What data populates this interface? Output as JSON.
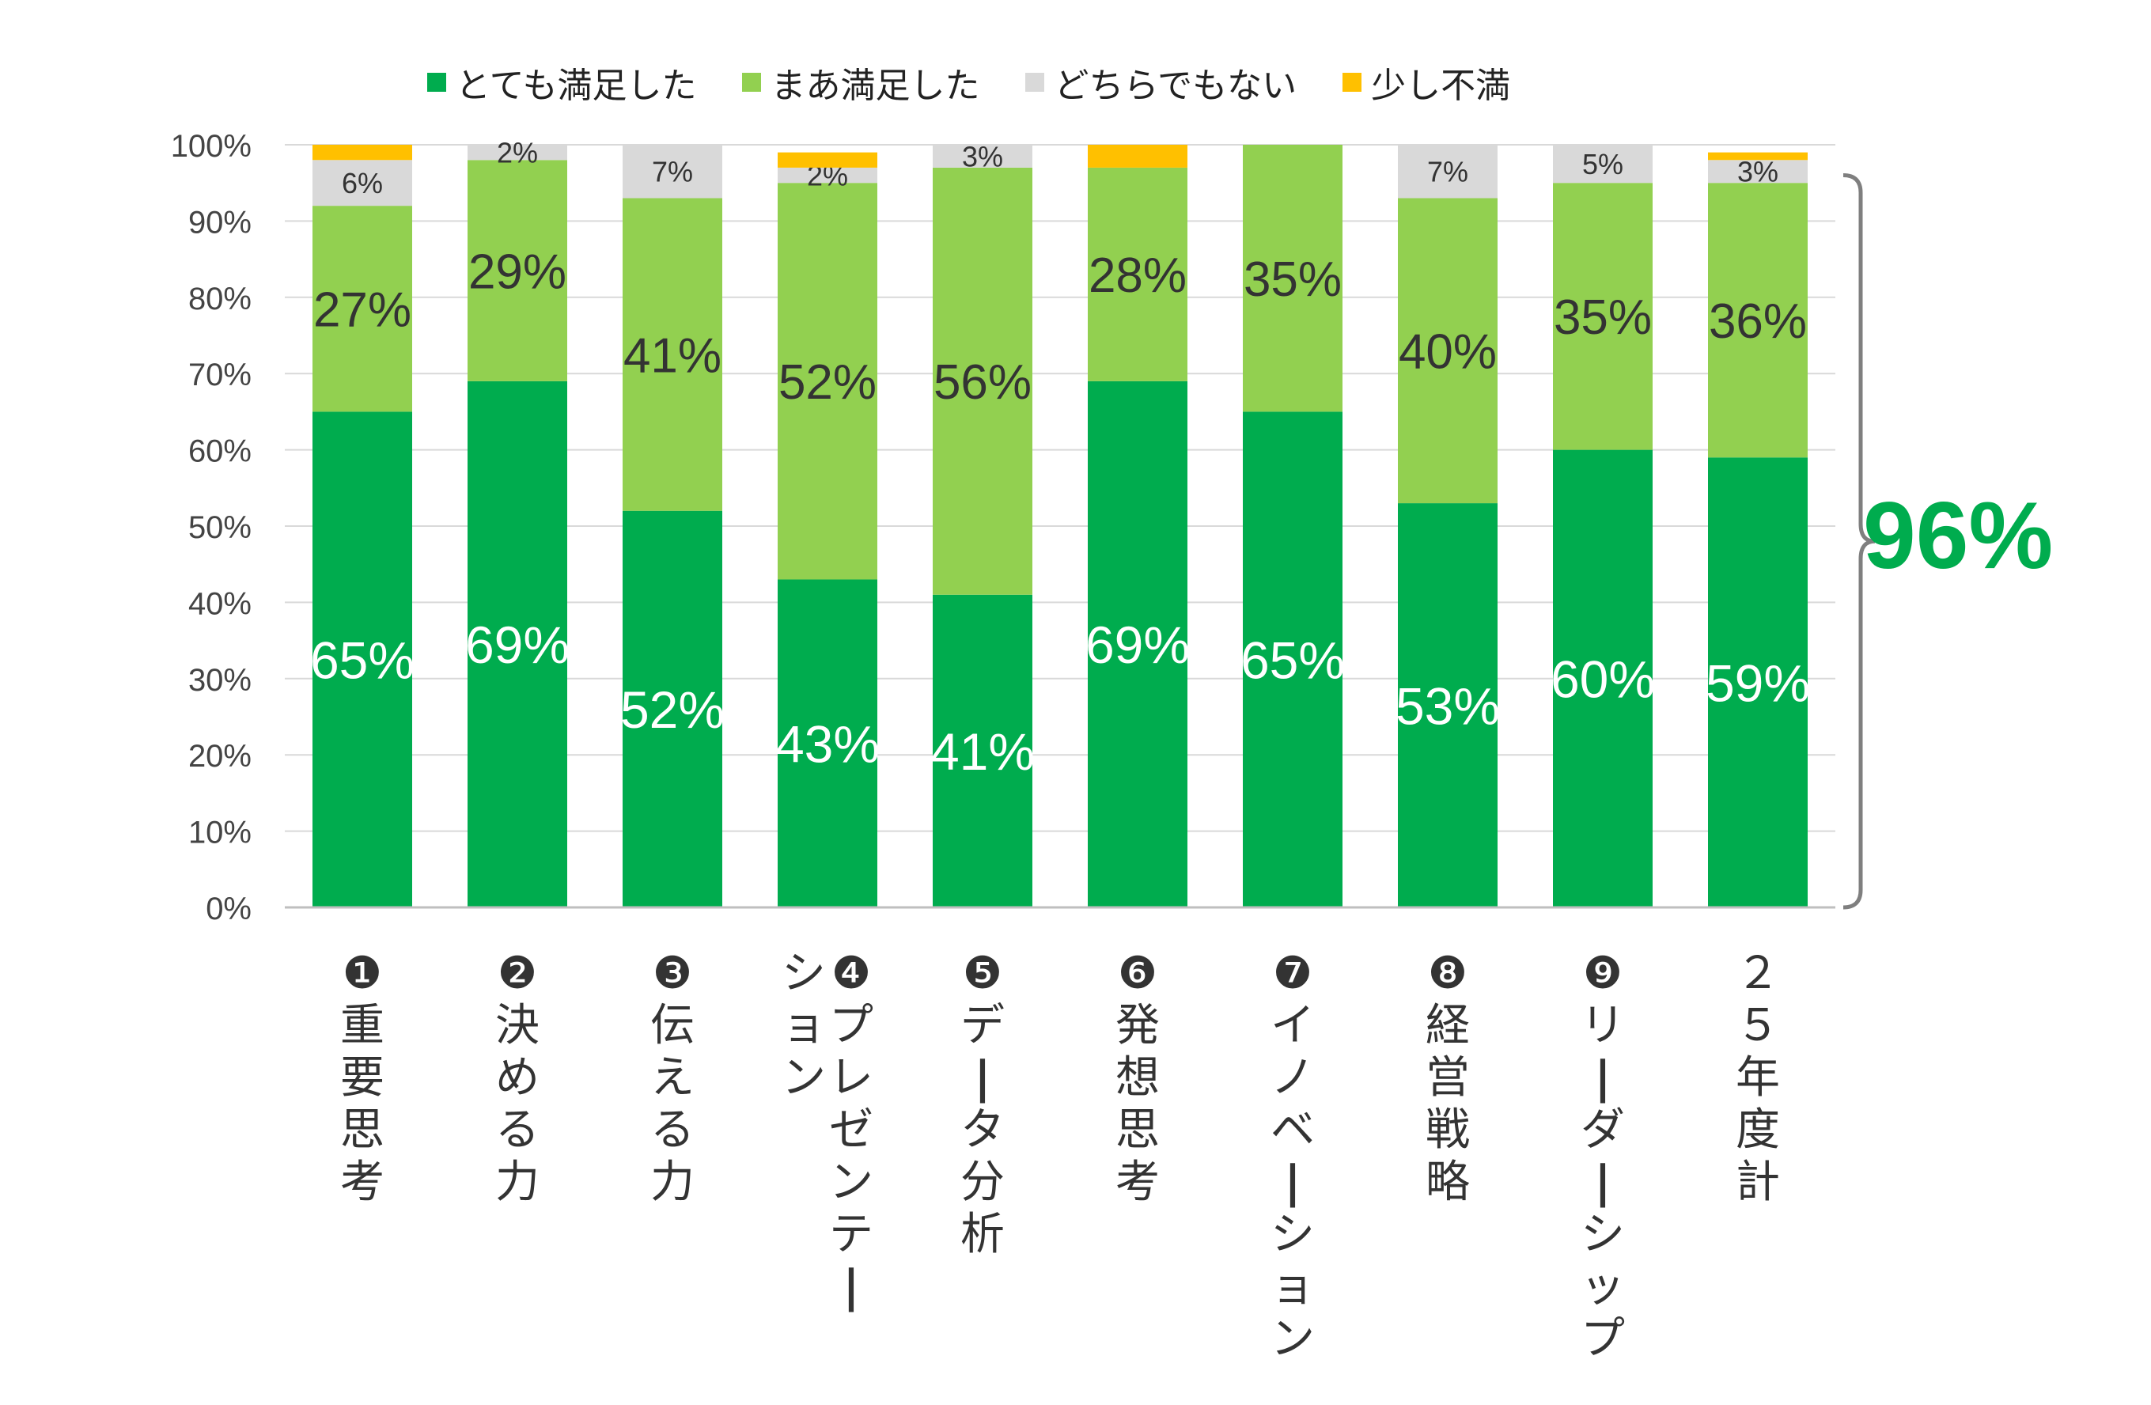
{
  "chart_data": {
    "type": "bar",
    "stacked": true,
    "categories": [
      "❶重要思考",
      "❷決める力",
      "❸伝える力",
      "❹プレゼンテーション",
      "❺データ分析",
      "❻発想思考",
      "❼イノベーション",
      "❽経営戦略",
      "❾リーダーシップ",
      "２５年度計"
    ],
    "category_lines": [
      [
        "❶重要思考"
      ],
      [
        "❷決める力"
      ],
      [
        "❸伝える力"
      ],
      [
        "❹プレゼンテー",
        "ション"
      ],
      [
        "❺データ分析"
      ],
      [
        "❻発想思考"
      ],
      [
        "❼イノベーション"
      ],
      [
        "❽経営戦略"
      ],
      [
        "❾リーダーシップ"
      ],
      [
        "２５年度計"
      ]
    ],
    "series": [
      {
        "name": "とても満足した",
        "color": "#00ac4e",
        "values": [
          65,
          69,
          52,
          43,
          41,
          69,
          65,
          53,
          60,
          59
        ],
        "labels": [
          "65%",
          "69%",
          "52%",
          "43%",
          "41%",
          "69%",
          "65%",
          "53%",
          "60%",
          "59%"
        ]
      },
      {
        "name": "まあ満足した",
        "color": "#92d050",
        "values": [
          27,
          29,
          41,
          52,
          56,
          28,
          35,
          40,
          35,
          36
        ],
        "labels": [
          "27%",
          "29%",
          "41%",
          "52%",
          "56%",
          "28%",
          "35%",
          "40%",
          "35%",
          "36%"
        ]
      },
      {
        "name": "どちらでもない",
        "color": "#d9d9d9",
        "values": [
          6,
          2,
          7,
          2,
          3,
          0,
          0,
          7,
          5,
          3
        ],
        "labels": [
          "6%",
          "2%",
          "7%",
          "2%",
          "3%",
          "",
          "",
          "7%",
          "5%",
          "3%"
        ]
      },
      {
        "name": "少し不満",
        "color": "#ffc000",
        "values": [
          2,
          0,
          0,
          2,
          0,
          3,
          0,
          0,
          0,
          1
        ],
        "labels": [
          "",
          "",
          "",
          "",
          "",
          "",
          "",
          "",
          "",
          ""
        ]
      }
    ],
    "yticks": [
      "0%",
      "10%",
      "20%",
      "30%",
      "40%",
      "50%",
      "60%",
      "70%",
      "80%",
      "90%",
      "100%"
    ],
    "ylim": [
      0,
      100
    ],
    "grid": true,
    "legend": "top",
    "annotation": "96%"
  }
}
